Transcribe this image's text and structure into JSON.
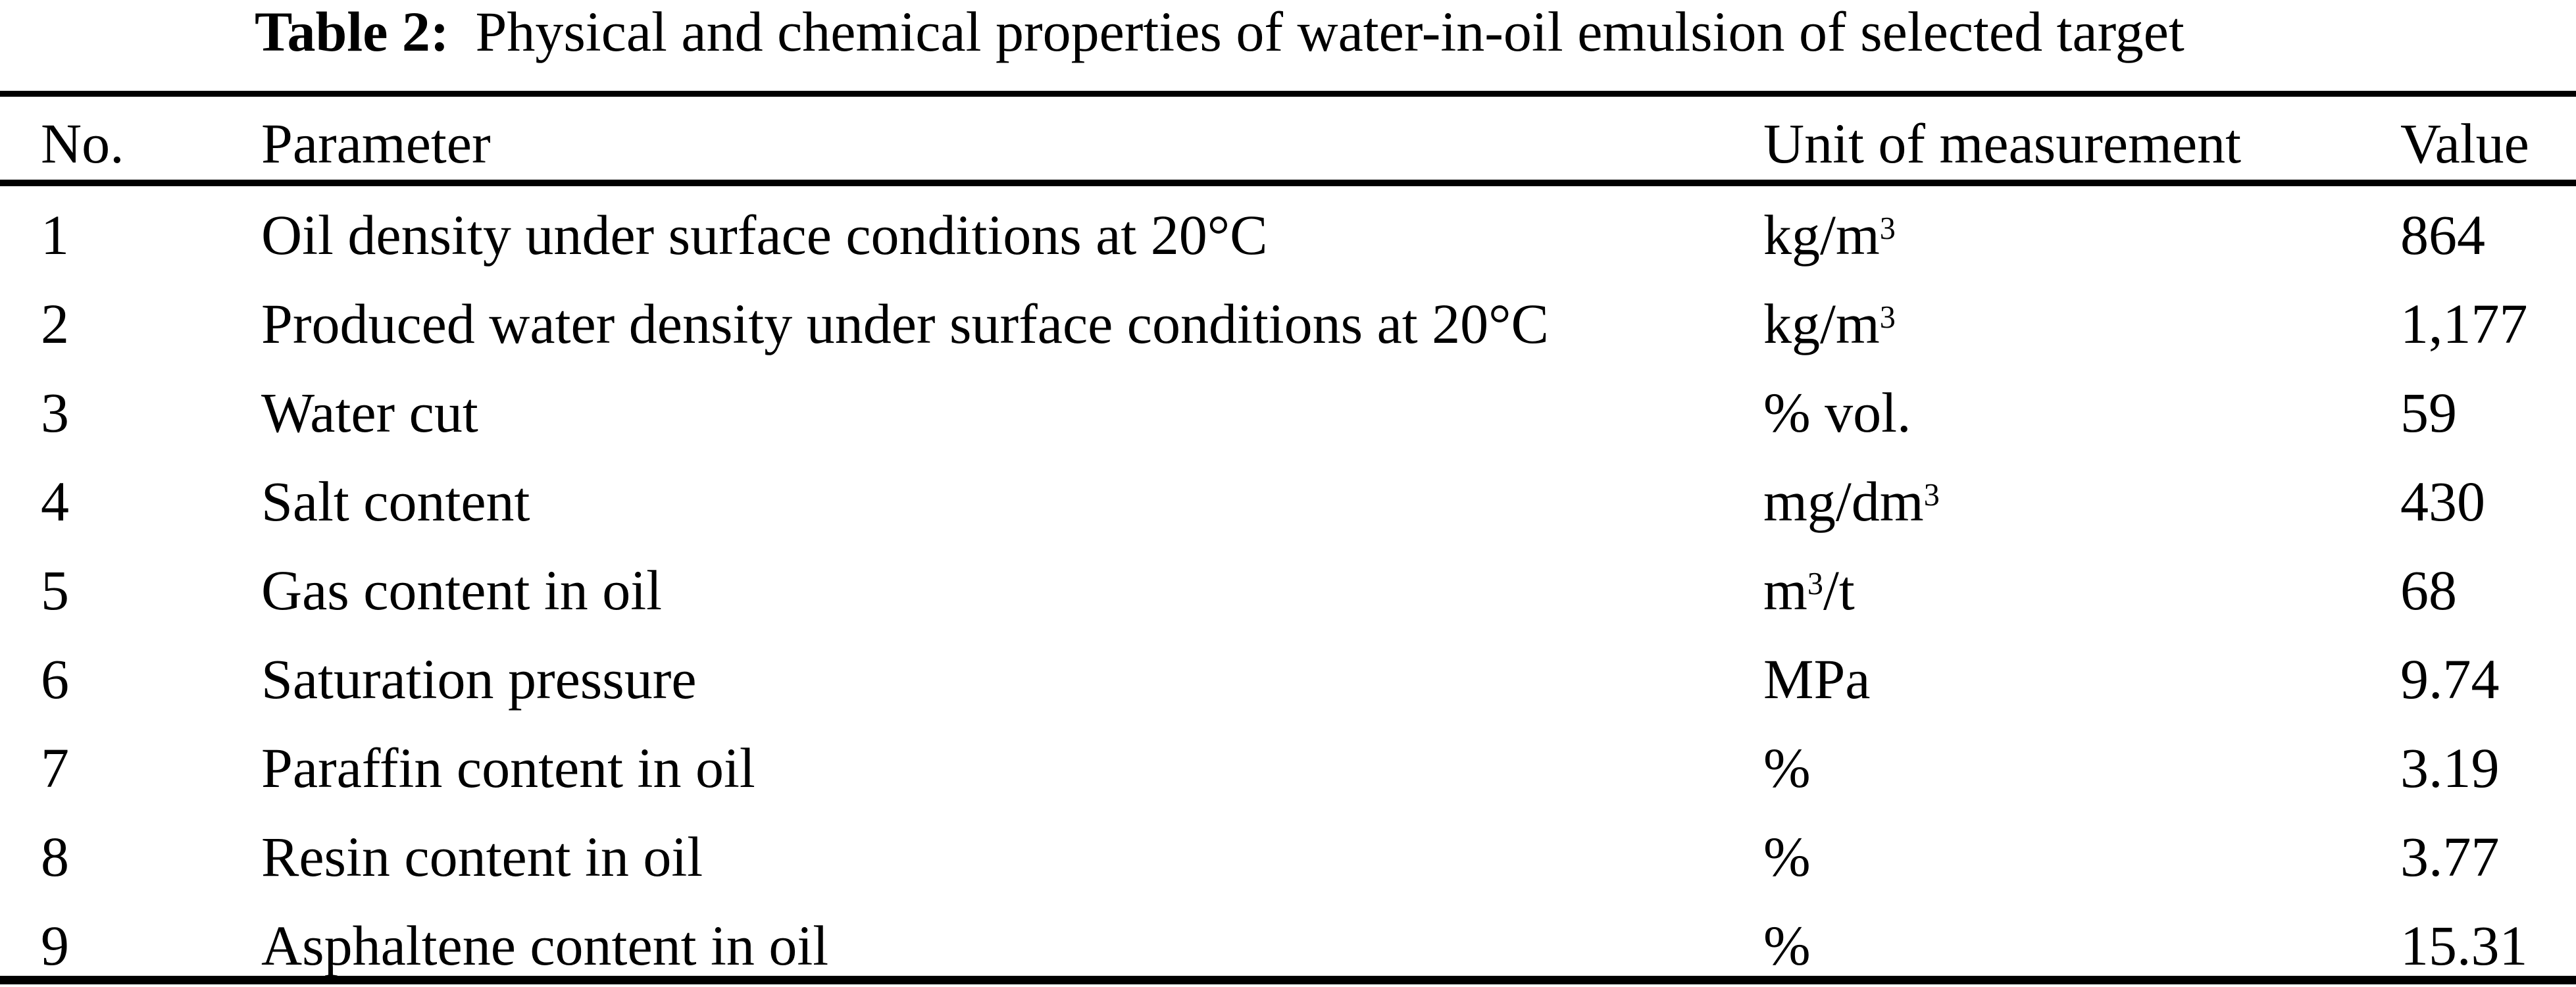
{
  "caption": {
    "label": "Table 2:",
    "text": "Physical and chemical properties of water-in-oil emulsion of selected target"
  },
  "table": {
    "columns": [
      "No.",
      "Parameter",
      "Unit of measurement",
      "Value"
    ],
    "rows": [
      {
        "no": "1",
        "parameter": "Oil density under surface conditions at 20°C",
        "unit": [
          {
            "t": "kg/m"
          },
          {
            "t": "3",
            "sup": true
          }
        ],
        "value": "864"
      },
      {
        "no": "2",
        "parameter": "Produced water density under surface conditions at 20°C",
        "unit": [
          {
            "t": "kg/m"
          },
          {
            "t": "3",
            "sup": true
          }
        ],
        "value": "1,177"
      },
      {
        "no": "3",
        "parameter": "Water cut",
        "unit": [
          {
            "t": "% vol."
          }
        ],
        "value": "59"
      },
      {
        "no": "4",
        "parameter": "Salt content",
        "unit": [
          {
            "t": "mg/dm"
          },
          {
            "t": "3",
            "sup": true
          }
        ],
        "value": "430"
      },
      {
        "no": "5",
        "parameter": "Gas content in oil",
        "unit": [
          {
            "t": "m"
          },
          {
            "t": "3",
            "sup": true
          },
          {
            "t": "/t"
          }
        ],
        "value": "68"
      },
      {
        "no": "6",
        "parameter": "Saturation pressure",
        "unit": [
          {
            "t": "MPa"
          }
        ],
        "value": "9.74"
      },
      {
        "no": "7",
        "parameter": "Paraffin content in oil",
        "unit": [
          {
            "t": "%"
          }
        ],
        "value": "3.19"
      },
      {
        "no": "8",
        "parameter": "Resin content in oil",
        "unit": [
          {
            "t": "%"
          }
        ],
        "value": "3.77"
      },
      {
        "no": "9",
        "parameter": "Asphaltene content in oil",
        "unit": [
          {
            "t": "%"
          }
        ],
        "value": "15.31"
      }
    ]
  },
  "colors": {
    "text": "#000000",
    "background": "#ffffff",
    "rule": "#000000"
  }
}
